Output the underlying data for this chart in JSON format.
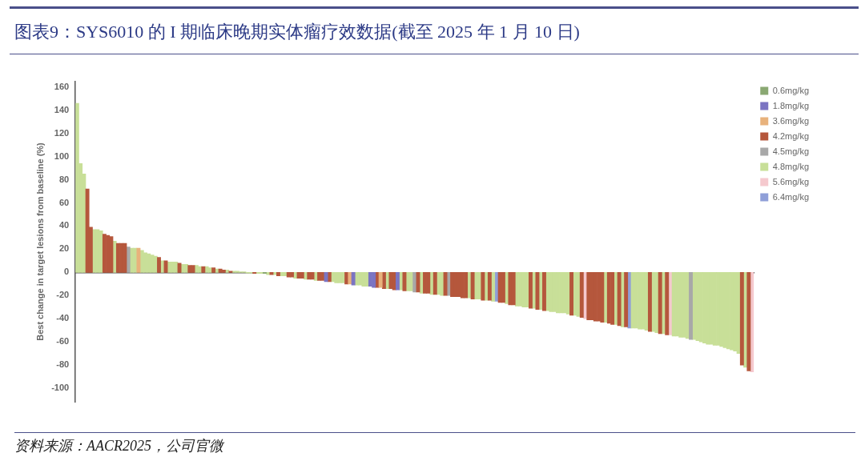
{
  "chart_data": {
    "type": "bar",
    "title": "图表9：SYS6010 的 I 期临床晚期实体瘤疗效数据(截至 2025 年 1 月 10 日)",
    "ylabel": "Best change in target lesions from baseline (%)",
    "annotations": [
      "资料来源：AACR2025，公司官微"
    ],
    "categories": [
      null,
      null,
      null,
      null,
      null,
      null,
      null,
      null,
      null,
      null,
      null,
      null,
      null,
      null,
      null,
      null,
      null,
      null,
      null,
      null,
      null,
      null,
      null,
      null,
      null,
      null,
      null,
      null,
      null,
      null,
      null,
      null,
      null,
      null,
      null,
      null,
      null,
      null,
      null,
      null,
      null,
      null,
      null,
      null,
      null,
      null,
      null,
      null,
      null,
      null,
      null,
      null,
      null,
      null,
      null,
      null,
      null,
      null,
      null,
      null,
      null,
      null,
      null,
      null,
      null,
      null,
      null,
      null,
      null,
      null,
      null,
      null,
      null,
      null,
      null,
      null,
      null,
      null,
      null,
      null,
      null,
      null,
      null,
      null,
      null,
      null,
      null,
      null,
      null,
      null,
      null,
      null,
      null,
      null,
      null,
      null,
      null,
      null,
      null,
      null,
      null,
      null,
      null,
      null,
      null,
      null,
      null,
      null,
      null,
      null,
      null,
      null,
      null,
      null,
      null,
      null,
      null,
      null,
      null,
      null,
      null,
      null,
      null,
      null,
      null,
      null,
      null,
      null,
      null,
      null,
      null,
      null,
      null,
      null,
      null,
      null,
      null,
      null,
      null,
      null,
      null,
      null,
      null,
      null,
      null,
      null,
      null,
      null,
      null,
      null,
      null,
      null,
      null,
      null,
      null,
      null,
      null,
      null,
      null,
      null,
      null,
      null,
      null,
      null,
      null,
      null,
      null,
      null,
      null,
      null,
      null,
      null,
      null,
      null,
      null,
      null,
      null,
      null,
      null,
      null,
      null,
      null,
      null,
      null,
      null,
      null,
      null,
      null,
      null,
      null,
      null,
      null,
      null,
      null,
      null,
      null,
      null,
      null,
      null
    ],
    "ylim": [
      -112,
      165
    ],
    "yticks": [
      -100,
      -80,
      -60,
      -40,
      -20,
      0,
      20,
      40,
      60,
      80,
      100,
      120,
      140,
      160
    ],
    "tick_labels": "y",
    "legend": "top right",
    "stacked": true,
    "series": [
      {
        "name": "0.6mg/kg",
        "color": "#8aa872",
        "values": [
          null,
          null,
          null,
          null,
          null,
          null,
          null,
          null,
          null,
          null,
          null,
          null,
          null,
          null,
          null,
          null,
          null,
          null,
          null,
          null,
          null,
          null,
          null,
          null,
          null,
          null,
          null,
          null,
          null,
          null,
          null,
          null,
          null,
          null,
          null,
          null,
          null,
          null,
          null,
          null,
          null,
          null,
          null,
          null,
          null,
          null,
          null,
          null,
          null,
          null,
          null,
          null,
          null,
          null,
          null,
          -1,
          null,
          null,
          null,
          null,
          null,
          null,
          null,
          null,
          null,
          null,
          null,
          null,
          null,
          null,
          null,
          null,
          null,
          null,
          null,
          null,
          null,
          null,
          null,
          null,
          null,
          null,
          null,
          null,
          null,
          null,
          null,
          null,
          null,
          null,
          null,
          null,
          null,
          null,
          null,
          null,
          null,
          null,
          null,
          null,
          null,
          null,
          null,
          null,
          null,
          null,
          null,
          null,
          null,
          null,
          null,
          null,
          null,
          null,
          null,
          null,
          null,
          null,
          null,
          null,
          null,
          null,
          null,
          null,
          null,
          null,
          null,
          null,
          null,
          null,
          null,
          null,
          null,
          null,
          null,
          null,
          null,
          null,
          null,
          null,
          null,
          null,
          null,
          null,
          null,
          null,
          null,
          null,
          null,
          null,
          null,
          null,
          null,
          null,
          null,
          null,
          null,
          null,
          null,
          null,
          null,
          null,
          null,
          null,
          null,
          null,
          null,
          null,
          null,
          null,
          null,
          null,
          null,
          null,
          null,
          null,
          null,
          null,
          null,
          null,
          null,
          null,
          null,
          null,
          null,
          null,
          null,
          null,
          null,
          null,
          null,
          null,
          null,
          null,
          null,
          null,
          null,
          null,
          null
        ]
      },
      {
        "name": "1.8mg/kg",
        "color": "#7b74c2",
        "values": [
          null,
          null,
          null,
          null,
          null,
          null,
          null,
          null,
          null,
          null,
          null,
          null,
          null,
          null,
          null,
          null,
          null,
          null,
          null,
          null,
          null,
          null,
          null,
          null,
          null,
          null,
          null,
          null,
          null,
          null,
          null,
          null,
          null,
          null,
          null,
          null,
          null,
          null,
          null,
          null,
          null,
          null,
          null,
          null,
          null,
          null,
          null,
          null,
          null,
          null,
          null,
          null,
          null,
          null,
          null,
          null,
          null,
          null,
          null,
          null,
          null,
          null,
          null,
          null,
          null,
          null,
          null,
          null,
          null,
          null,
          null,
          null,
          null,
          -8,
          null,
          null,
          null,
          null,
          null,
          null,
          null,
          -11,
          null,
          null,
          null,
          null,
          -12,
          -13,
          null,
          null,
          null,
          null,
          null,
          null,
          -15,
          null,
          null,
          null,
          null,
          null,
          null,
          null,
          null,
          null,
          null,
          null,
          null,
          null,
          null,
          null,
          null,
          null,
          null,
          null,
          null,
          null,
          null,
          null,
          null,
          null,
          null,
          null,
          null,
          null,
          null,
          null,
          null,
          null,
          null,
          null,
          null,
          null,
          null,
          null,
          null,
          null,
          null,
          null,
          null,
          null,
          null,
          null,
          null,
          null,
          null,
          null,
          null,
          null,
          null,
          null,
          null,
          null,
          null,
          null,
          null,
          null,
          null,
          null,
          null,
          null,
          null,
          null,
          null,
          null,
          null,
          null,
          null,
          null,
          null,
          null,
          null,
          null,
          null,
          null,
          null,
          null,
          null,
          null,
          null,
          null,
          null,
          null,
          null,
          null,
          null,
          null,
          null,
          null,
          null,
          null,
          null,
          null,
          null,
          null,
          null,
          null,
          null,
          null,
          null
        ]
      },
      {
        "name": "3.6mg/kg",
        "color": "#e8b27c",
        "values": [
          null,
          null,
          null,
          null,
          null,
          null,
          null,
          null,
          null,
          null,
          null,
          null,
          null,
          null,
          null,
          null,
          null,
          null,
          21,
          null,
          null,
          null,
          null,
          null,
          null,
          null,
          null,
          null,
          null,
          null,
          null,
          null,
          null,
          null,
          null,
          null,
          null,
          null,
          null,
          null,
          null,
          null,
          null,
          null,
          null,
          null,
          null,
          null,
          null,
          null,
          null,
          null,
          null,
          null,
          null,
          null,
          null,
          null,
          null,
          null,
          null,
          null,
          null,
          null,
          null,
          null,
          null,
          null,
          null,
          null,
          null,
          null,
          null,
          null,
          null,
          null,
          null,
          null,
          null,
          null,
          -10,
          null,
          null,
          null,
          null,
          null,
          null,
          null,
          null,
          -13,
          null,
          null,
          null,
          null,
          null,
          null,
          null,
          null,
          null,
          null,
          null,
          null,
          null,
          null,
          null,
          null,
          null,
          null,
          null,
          null,
          null,
          null,
          null,
          null,
          null,
          null,
          null,
          null,
          null,
          null,
          null,
          null,
          null,
          null,
          null,
          null,
          null,
          null,
          null,
          null,
          null,
          null,
          null,
          null,
          null,
          null,
          null,
          null,
          null,
          null,
          null,
          null,
          null,
          null,
          null,
          null,
          null,
          null,
          null,
          null,
          null,
          null,
          null,
          null,
          null,
          null,
          null,
          null,
          null,
          null,
          null,
          null,
          null,
          null,
          null,
          null,
          null,
          null,
          null,
          null,
          null,
          null,
          null,
          null,
          null,
          null,
          null,
          null,
          null,
          null,
          null,
          null,
          null,
          null,
          null,
          null,
          null,
          null,
          null,
          null,
          null,
          null,
          null,
          null,
          null,
          null,
          null,
          null,
          null
        ]
      },
      {
        "name": "4.2mg/kg",
        "color": "#b5573c",
        "values": [
          null,
          null,
          null,
          72,
          39,
          null,
          null,
          null,
          33,
          32,
          31,
          null,
          25,
          25,
          25,
          null,
          null,
          null,
          null,
          null,
          null,
          null,
          null,
          null,
          13,
          null,
          10,
          null,
          null,
          null,
          8,
          null,
          null,
          6,
          6,
          null,
          null,
          5,
          null,
          null,
          4,
          null,
          3,
          2,
          null,
          1,
          null,
          null,
          null,
          null,
          null,
          null,
          -1,
          null,
          null,
          null,
          null,
          -2,
          null,
          -3,
          null,
          null,
          -4,
          -4,
          null,
          -5,
          -5,
          null,
          -6,
          -6,
          null,
          -7,
          -7,
          null,
          -8,
          null,
          null,
          null,
          null,
          -10,
          null,
          null,
          null,
          null,
          null,
          null,
          null,
          null,
          -13,
          null,
          -14,
          null,
          -14,
          -15,
          null,
          null,
          -16,
          null,
          null,
          null,
          -17,
          null,
          -18,
          -18,
          null,
          -19,
          null,
          null,
          -20,
          null,
          -21,
          -21,
          -21,
          -22,
          -22,
          null,
          -23,
          null,
          null,
          -24,
          null,
          -24,
          null,
          null,
          -26,
          -26,
          null,
          -28,
          -28,
          null,
          null,
          null,
          null,
          -31,
          null,
          -32,
          null,
          -33,
          null,
          null,
          null,
          null,
          null,
          null,
          null,
          -37,
          null,
          null,
          -39,
          null,
          -41,
          -41,
          -42,
          -42,
          -43,
          null,
          -44,
          -45,
          null,
          -46,
          null,
          -47,
          null,
          null,
          null,
          null,
          null,
          null,
          -51,
          null,
          null,
          -53,
          null,
          -54,
          null,
          null,
          null,
          null,
          null,
          null,
          null,
          null,
          null,
          null,
          null,
          null,
          null,
          null,
          null,
          null,
          null,
          null,
          null,
          null,
          null,
          -80,
          null,
          -85,
          null
        ]
      },
      {
        "name": "4.5mg/kg",
        "color": "#a8a8a8",
        "values": [
          null,
          null,
          null,
          null,
          null,
          null,
          null,
          null,
          null,
          null,
          null,
          null,
          null,
          null,
          null,
          22,
          null,
          null,
          null,
          null,
          null,
          null,
          null,
          null,
          null,
          null,
          null,
          null,
          null,
          null,
          null,
          null,
          null,
          null,
          null,
          null,
          null,
          null,
          null,
          null,
          null,
          null,
          null,
          null,
          null,
          null,
          null,
          null,
          null,
          null,
          null,
          null,
          null,
          null,
          null,
          null,
          null,
          null,
          null,
          null,
          null,
          null,
          null,
          null,
          null,
          null,
          null,
          null,
          null,
          null,
          null,
          null,
          null,
          null,
          null,
          null,
          null,
          null,
          null,
          null,
          null,
          null,
          null,
          null,
          null,
          null,
          null,
          null,
          null,
          null,
          null,
          null,
          null,
          null,
          null,
          null,
          null,
          null,
          null,
          -17,
          null,
          null,
          null,
          null,
          null,
          null,
          null,
          null,
          null,
          -20,
          null,
          null,
          null,
          null,
          null,
          null,
          null,
          null,
          null,
          null,
          null,
          null,
          null,
          null,
          null,
          null,
          null,
          null,
          null,
          null,
          null,
          null,
          null,
          null,
          null,
          null,
          null,
          null,
          null,
          null,
          null,
          null,
          null,
          null,
          null,
          null,
          null,
          null,
          null,
          null,
          null,
          null,
          null,
          null,
          null,
          null,
          null,
          null,
          null,
          null,
          null,
          null,
          null,
          null,
          null,
          null,
          null,
          null,
          null,
          null,
          null,
          null,
          null,
          null,
          null,
          null,
          null,
          null,
          null,
          null,
          -58,
          null,
          null,
          null,
          null,
          null,
          null,
          null,
          null,
          null,
          null,
          null,
          null,
          null,
          null,
          null,
          null,
          null,
          null
        ]
      },
      {
        "name": "4.8mg/kg",
        "color": "#c8df98",
        "values": [
          146,
          94,
          85,
          null,
          null,
          37,
          37,
          36,
          null,
          null,
          null,
          27,
          null,
          null,
          null,
          null,
          21,
          21,
          null,
          19,
          17,
          16,
          15,
          14,
          null,
          10,
          null,
          9,
          9,
          9,
          null,
          7,
          7,
          null,
          null,
          6,
          5,
          null,
          5,
          4,
          null,
          3,
          null,
          null,
          2,
          null,
          1,
          1,
          0.5,
          0.5,
          -0.5,
          -0.5,
          null,
          -1,
          -1,
          null,
          -2,
          null,
          -2,
          null,
          -3,
          -3,
          null,
          null,
          -5,
          null,
          null,
          -6,
          null,
          null,
          -7,
          null,
          null,
          null,
          null,
          -8,
          -9,
          -9,
          -9,
          null,
          null,
          null,
          -11,
          -11,
          -12,
          -12,
          null,
          null,
          null,
          null,
          null,
          -14,
          null,
          null,
          null,
          -15,
          null,
          -16,
          -16,
          null,
          null,
          -18,
          null,
          null,
          -19,
          null,
          -19,
          -20,
          null,
          null,
          null,
          null,
          null,
          null,
          null,
          -22,
          null,
          -23,
          -23,
          null,
          -24,
          null,
          -25,
          null,
          null,
          null,
          -27,
          null,
          null,
          -29,
          -29,
          -30,
          -30,
          null,
          -31,
          null,
          -32,
          null,
          -33,
          -34,
          -34,
          -35,
          -35,
          -35,
          -36,
          null,
          -37,
          -38,
          null,
          null,
          null,
          null,
          null,
          null,
          null,
          -43,
          null,
          null,
          -45,
          null,
          -47,
          null,
          null,
          -48,
          -48,
          -49,
          -49,
          -50,
          null,
          -51,
          -52,
          null,
          -53,
          null,
          null,
          -55,
          -55,
          -56,
          -56,
          -57,
          null,
          -58,
          -59,
          -60,
          -61,
          -62,
          -62,
          -63,
          -63,
          -64,
          -65,
          -66,
          -67,
          -68,
          -70,
          null,
          -82,
          null,
          null
        ]
      },
      {
        "name": "5.6mg/kg",
        "color": "#f5c9ce",
        "values": [
          null,
          null,
          null,
          null,
          null,
          null,
          null,
          null,
          null,
          null,
          null,
          null,
          null,
          null,
          null,
          null,
          null,
          null,
          null,
          null,
          null,
          null,
          null,
          null,
          null,
          null,
          null,
          null,
          null,
          null,
          null,
          null,
          null,
          null,
          null,
          null,
          null,
          null,
          null,
          null,
          null,
          null,
          null,
          null,
          null,
          null,
          null,
          null,
          null,
          null,
          null,
          null,
          null,
          null,
          null,
          null,
          null,
          null,
          null,
          null,
          null,
          null,
          null,
          null,
          null,
          null,
          null,
          null,
          null,
          null,
          null,
          null,
          null,
          null,
          null,
          null,
          null,
          null,
          null,
          null,
          null,
          null,
          null,
          null,
          null,
          null,
          null,
          null,
          null,
          null,
          null,
          null,
          null,
          null,
          null,
          null,
          null,
          null,
          null,
          null,
          null,
          null,
          null,
          null,
          null,
          null,
          null,
          null,
          null,
          null,
          null,
          null,
          null,
          null,
          null,
          null,
          null,
          null,
          null,
          null,
          null,
          null,
          null,
          null,
          null,
          null,
          null,
          null,
          null,
          null,
          null,
          null,
          null,
          null,
          null,
          null,
          null,
          null,
          null,
          null,
          null,
          null,
          null,
          null,
          null,
          null,
          null,
          null,
          null,
          -40,
          null,
          null,
          null,
          null,
          null,
          null,
          null,
          null,
          null,
          null,
          null,
          null,
          null,
          null,
          null,
          null,
          null,
          null,
          null,
          null,
          null,
          null,
          null,
          null,
          -54,
          null,
          null,
          null,
          null,
          null,
          null,
          null,
          null,
          null,
          null,
          null,
          null,
          null,
          null,
          null,
          null,
          null,
          null,
          null,
          null,
          null,
          null,
          null,
          -86
        ]
      },
      {
        "name": "6.4mg/kg",
        "color": "#8f9fd8",
        "values": [
          null,
          null,
          null,
          null,
          null,
          null,
          null,
          null,
          null,
          null,
          null,
          null,
          null,
          null,
          null,
          null,
          null,
          null,
          null,
          null,
          null,
          null,
          null,
          null,
          null,
          null,
          null,
          null,
          null,
          null,
          null,
          null,
          null,
          null,
          null,
          null,
          null,
          null,
          null,
          null,
          null,
          null,
          null,
          null,
          null,
          null,
          null,
          null,
          null,
          null,
          null,
          null,
          null,
          null,
          null,
          null,
          null,
          null,
          null,
          null,
          null,
          null,
          null,
          null,
          null,
          null,
          null,
          null,
          null,
          null,
          null,
          null,
          null,
          null,
          null,
          null,
          null,
          null,
          null,
          null,
          null,
          null,
          null,
          null,
          null,
          null,
          null,
          null,
          null,
          null,
          null,
          null,
          null,
          null,
          null,
          null,
          null,
          null,
          null,
          null,
          null,
          null,
          null,
          null,
          null,
          null,
          null,
          null,
          null,
          null,
          null,
          null,
          null,
          null,
          null,
          null,
          null,
          null,
          null,
          null,
          null,
          null,
          null,
          -25,
          null,
          null,
          null,
          null,
          null,
          null,
          null,
          null,
          null,
          null,
          null,
          null,
          null,
          null,
          null,
          null,
          null,
          null,
          null,
          null,
          null,
          null,
          null,
          null,
          null,
          null,
          null,
          null,
          null,
          null,
          null,
          null,
          null,
          null,
          null,
          null,
          null,
          null,
          -48,
          null,
          null,
          null,
          null,
          null,
          null,
          null,
          null,
          null,
          null,
          null,
          null,
          null,
          null,
          null,
          null,
          null,
          null,
          null,
          null,
          null,
          null,
          null,
          null,
          null,
          null,
          null,
          null,
          null,
          null,
          null,
          null,
          null,
          null,
          null,
          null
        ]
      }
    ]
  }
}
